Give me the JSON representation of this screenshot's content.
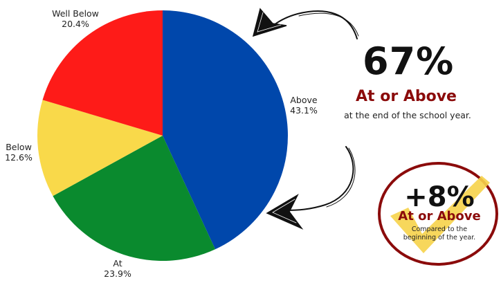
{
  "chart_data": {
    "type": "pie",
    "title": "",
    "slices": [
      {
        "name": "Above",
        "value": 43.1,
        "label": "43.1%",
        "color": "#0047ab"
      },
      {
        "name": "At",
        "value": 23.9,
        "label": "23.9%",
        "color": "#0a8a2e"
      },
      {
        "name": "Below",
        "value": 12.6,
        "label": "12.6%",
        "color": "#f9d94a"
      },
      {
        "name": "Well Below",
        "value": 20.4,
        "label": "20.4%",
        "color": "#fe1b18"
      }
    ]
  },
  "callout": {
    "percent": "67%",
    "subtitle": "At or Above",
    "description": "at the end of the school year."
  },
  "badge": {
    "percent": "+8%",
    "subtitle": "At or Above",
    "description_line1": "Compared to the",
    "description_line2": "beginning of the year."
  },
  "colors": {
    "accent_red": "#8b0b0b",
    "check_yellow": "#f6d34a"
  },
  "icons": [
    "curved-arrow-icon",
    "checkmark-icon"
  ]
}
